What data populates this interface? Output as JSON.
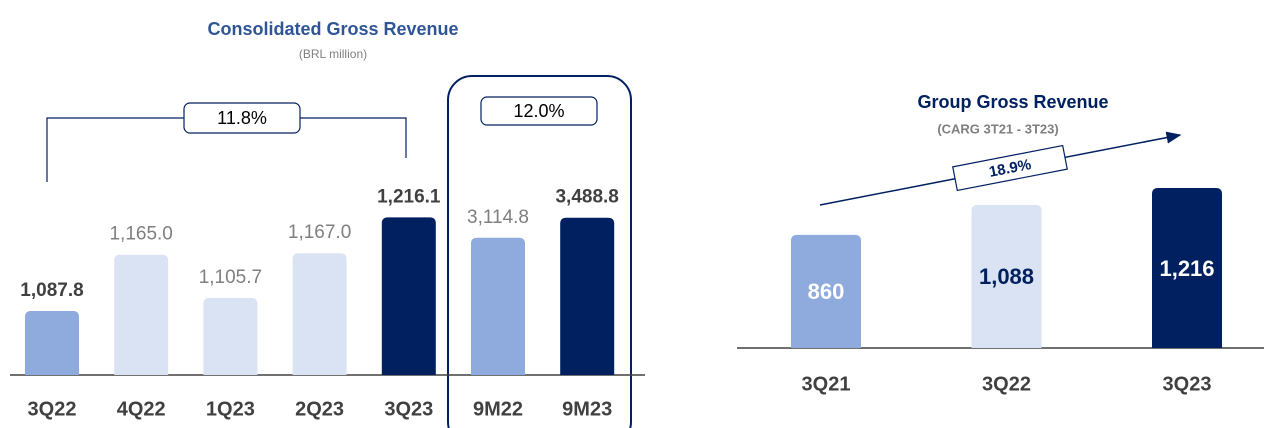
{
  "chart_data": [
    {
      "type": "bar",
      "title": "Consolidated Gross Revenue",
      "subtitle": "(BRL million)",
      "categories": [
        "3Q22",
        "4Q22",
        "1Q23",
        "2Q23",
        "3Q23",
        "9M22",
        "9M23"
      ],
      "values": [
        1087.8,
        1165.0,
        1105.7,
        1167.0,
        1216.1,
        3114.8,
        3488.8
      ],
      "value_labels": [
        "1,087.8",
        "1,165.0",
        "1,105.7",
        "1,167.0",
        "1,216.1",
        "3,114.8",
        "3,488.8"
      ],
      "colors": [
        "#8faadc",
        "#dae3f3",
        "#dae3f3",
        "#dae3f3",
        "#002060",
        "#8faadc",
        "#002060"
      ],
      "label_colors": [
        "#404040",
        "#7f7f7f",
        "#7f7f7f",
        "#7f7f7f",
        "#404040",
        "#7f7f7f",
        "#404040"
      ],
      "value_axis": [
        "y",
        "y",
        "y",
        "y",
        "y",
        "y2",
        "y2"
      ],
      "ylim": [
        1000,
        1240
      ],
      "y2lim": [
        550,
        3820
      ],
      "annotations": [
        "11.8%",
        "12.0%"
      ]
    },
    {
      "type": "bar",
      "title": "Group Gross Revenue",
      "subtitle": "(CARG 3T21 - 3T23)",
      "categories": [
        "3Q21",
        "3Q22",
        "3Q23"
      ],
      "values": [
        860,
        1088,
        1216
      ],
      "value_labels": [
        "860",
        "1,088",
        "1,216"
      ],
      "colors": [
        "#8faadc",
        "#dae3f3",
        "#002060"
      ],
      "label_colors": [
        "#ffffff",
        "#002060",
        "#ffffff"
      ],
      "ylim": [
        0,
        1500
      ],
      "annotations": [
        "18.9%"
      ]
    }
  ]
}
